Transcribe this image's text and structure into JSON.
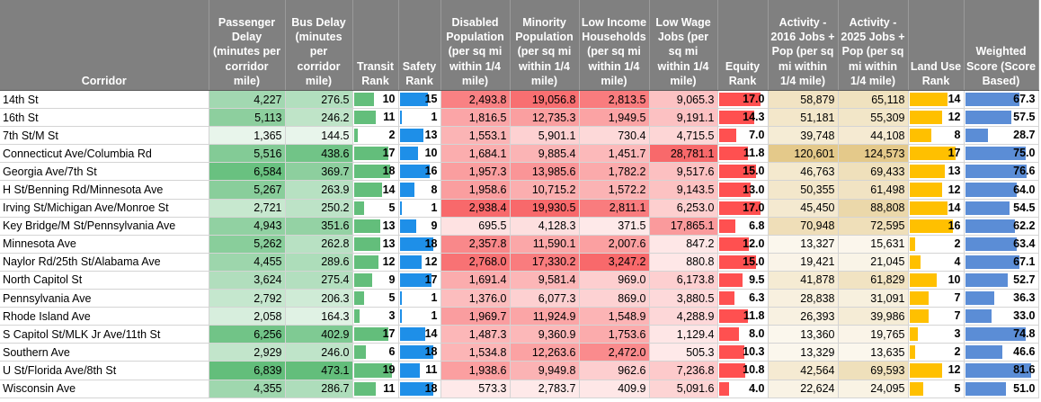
{
  "colors": {
    "header_bg": "#808080",
    "green_bar": "#63be7b",
    "blue_bar": "#1e8fe8",
    "red_bar": "#ff5050",
    "gold_bar": "#ffc000",
    "steel_bar": "#5b8dd6"
  },
  "headers": [
    "Corridor",
    "Passenger Delay (minutes per corridor mile)",
    "Bus Delay (minutes per corridor mile)",
    "Transit Rank",
    "Safety Rank",
    "Disabled Population (per sq mi within 1/4 mile)",
    "Minority Population (per sq mi within 1/4 mile)",
    "Low Income Households (per sq mi within 1/4 mile)",
    "Low Wage Jobs (per sq mi within 1/4 mile)",
    "Equity Rank",
    "Activity - 2016 Jobs + Pop (per sq mi within 1/4 mile)",
    "Activity - 2025 Jobs + Pop (per sq mi within 1/4 mile)",
    "Land Use Rank",
    "Weighted Score (Score Based)"
  ],
  "rows": [
    {
      "corridor": "14th St",
      "pd": "4,227",
      "bd": "276.5",
      "tr": "10",
      "sr": "15",
      "dis": "2,493.8",
      "min": "19,056.8",
      "lih": "2,813.5",
      "lwj": "9,065.3",
      "er": "17.0",
      "a16": "58,879",
      "a25": "65,118",
      "lu": "14",
      "ws": "67.3"
    },
    {
      "corridor": "16th St",
      "pd": "5,113",
      "bd": "246.2",
      "tr": "11",
      "sr": "1",
      "dis": "1,816.5",
      "min": "12,735.3",
      "lih": "1,949.5",
      "lwj": "9,191.1",
      "er": "14.3",
      "a16": "51,181",
      "a25": "55,309",
      "lu": "12",
      "ws": "57.5"
    },
    {
      "corridor": "7th St/M St",
      "pd": "1,365",
      "bd": "144.5",
      "tr": "2",
      "sr": "13",
      "dis": "1,553.1",
      "min": "5,901.1",
      "lih": "730.4",
      "lwj": "4,715.5",
      "er": "7.0",
      "a16": "39,748",
      "a25": "44,108",
      "lu": "8",
      "ws": "28.7"
    },
    {
      "corridor": "Connecticut Ave/Columbia Rd",
      "pd": "5,516",
      "bd": "438.6",
      "tr": "17",
      "sr": "10",
      "dis": "1,684.1",
      "min": "9,885.4",
      "lih": "1,451.7",
      "lwj": "28,781.1",
      "er": "11.8",
      "a16": "120,601",
      "a25": "124,573",
      "lu": "17",
      "ws": "75.0"
    },
    {
      "corridor": "Georgia Ave/7th St",
      "pd": "6,584",
      "bd": "369.7",
      "tr": "18",
      "sr": "16",
      "dis": "1,957.3",
      "min": "13,985.6",
      "lih": "1,782.2",
      "lwj": "9,517.6",
      "er": "15.0",
      "a16": "46,763",
      "a25": "69,433",
      "lu": "13",
      "ws": "76.6"
    },
    {
      "corridor": "H St/Benning Rd/Minnesota Ave",
      "pd": "5,267",
      "bd": "263.9",
      "tr": "14",
      "sr": "8",
      "dis": "1,958.6",
      "min": "10,715.2",
      "lih": "1,572.2",
      "lwj": "9,143.5",
      "er": "13.0",
      "a16": "50,355",
      "a25": "61,498",
      "lu": "12",
      "ws": "64.0"
    },
    {
      "corridor": "Irving St/Michigan Ave/Monroe St",
      "pd": "2,721",
      "bd": "250.2",
      "tr": "5",
      "sr": "1",
      "dis": "2,938.4",
      "min": "19,930.5",
      "lih": "2,811.1",
      "lwj": "6,253.0",
      "er": "17.0",
      "a16": "45,450",
      "a25": "88,808",
      "lu": "14",
      "ws": "54.5"
    },
    {
      "corridor": "Key Bridge/M St/Pennsylvania Ave",
      "pd": "4,943",
      "bd": "351.6",
      "tr": "13",
      "sr": "9",
      "dis": "695.5",
      "min": "4,128.3",
      "lih": "371.5",
      "lwj": "17,865.1",
      "er": "6.8",
      "a16": "70,948",
      "a25": "72,595",
      "lu": "16",
      "ws": "62.2"
    },
    {
      "corridor": "Minnesota Ave",
      "pd": "5,262",
      "bd": "262.8",
      "tr": "13",
      "sr": "18",
      "dis": "2,357.8",
      "min": "11,590.1",
      "lih": "2,007.6",
      "lwj": "847.2",
      "er": "12.0",
      "a16": "13,327",
      "a25": "15,631",
      "lu": "2",
      "ws": "63.4"
    },
    {
      "corridor": "Naylor Rd/25th St/Alabama Ave",
      "pd": "4,455",
      "bd": "289.6",
      "tr": "12",
      "sr": "12",
      "dis": "2,768.0",
      "min": "17,330.2",
      "lih": "3,247.2",
      "lwj": "880.8",
      "er": "15.0",
      "a16": "19,421",
      "a25": "21,045",
      "lu": "4",
      "ws": "67.1"
    },
    {
      "corridor": "North Capitol St",
      "pd": "3,624",
      "bd": "275.4",
      "tr": "9",
      "sr": "17",
      "dis": "1,691.4",
      "min": "9,581.4",
      "lih": "969.0",
      "lwj": "6,173.8",
      "er": "9.5",
      "a16": "41,878",
      "a25": "61,829",
      "lu": "10",
      "ws": "52.7"
    },
    {
      "corridor": "Pennsylvania Ave",
      "pd": "2,792",
      "bd": "206.3",
      "tr": "5",
      "sr": "1",
      "dis": "1,376.0",
      "min": "6,077.3",
      "lih": "869.0",
      "lwj": "3,880.5",
      "er": "6.3",
      "a16": "28,838",
      "a25": "31,091",
      "lu": "7",
      "ws": "36.3"
    },
    {
      "corridor": "Rhode Island Ave",
      "pd": "2,058",
      "bd": "164.3",
      "tr": "3",
      "sr": "1",
      "dis": "1,969.7",
      "min": "11,924.9",
      "lih": "1,548.9",
      "lwj": "4,288.9",
      "er": "11.8",
      "a16": "26,393",
      "a25": "39,986",
      "lu": "7",
      "ws": "33.0"
    },
    {
      "corridor": "S Capitol St/MLK Jr Ave/11th St",
      "pd": "6,256",
      "bd": "402.9",
      "tr": "17",
      "sr": "14",
      "dis": "1,487.3",
      "min": "9,360.9",
      "lih": "1,753.6",
      "lwj": "1,129.4",
      "er": "8.0",
      "a16": "13,360",
      "a25": "19,765",
      "lu": "3",
      "ws": "74.8"
    },
    {
      "corridor": "Southern Ave",
      "pd": "2,929",
      "bd": "246.0",
      "tr": "6",
      "sr": "18",
      "dis": "1,534.8",
      "min": "12,263.6",
      "lih": "2,472.0",
      "lwj": "505.3",
      "er": "10.3",
      "a16": "13,329",
      "a25": "13,635",
      "lu": "2",
      "ws": "46.6"
    },
    {
      "corridor": "U St/Florida Ave/8th St",
      "pd": "6,839",
      "bd": "473.1",
      "tr": "19",
      "sr": "11",
      "dis": "1,938.6",
      "min": "9,949.8",
      "lih": "962.6",
      "lwj": "7,236.8",
      "er": "10.8",
      "a16": "42,564",
      "a25": "69,593",
      "lu": "12",
      "ws": "81.6"
    },
    {
      "corridor": "Wisconsin Ave",
      "pd": "4,355",
      "bd": "286.7",
      "tr": "11",
      "sr": "18",
      "dis": "573.3",
      "min": "2,783.7",
      "lih": "409.9",
      "lwj": "5,091.6",
      "er": "4.0",
      "a16": "22,624",
      "a25": "24,095",
      "lu": "5",
      "ws": "51.0"
    }
  ]
}
